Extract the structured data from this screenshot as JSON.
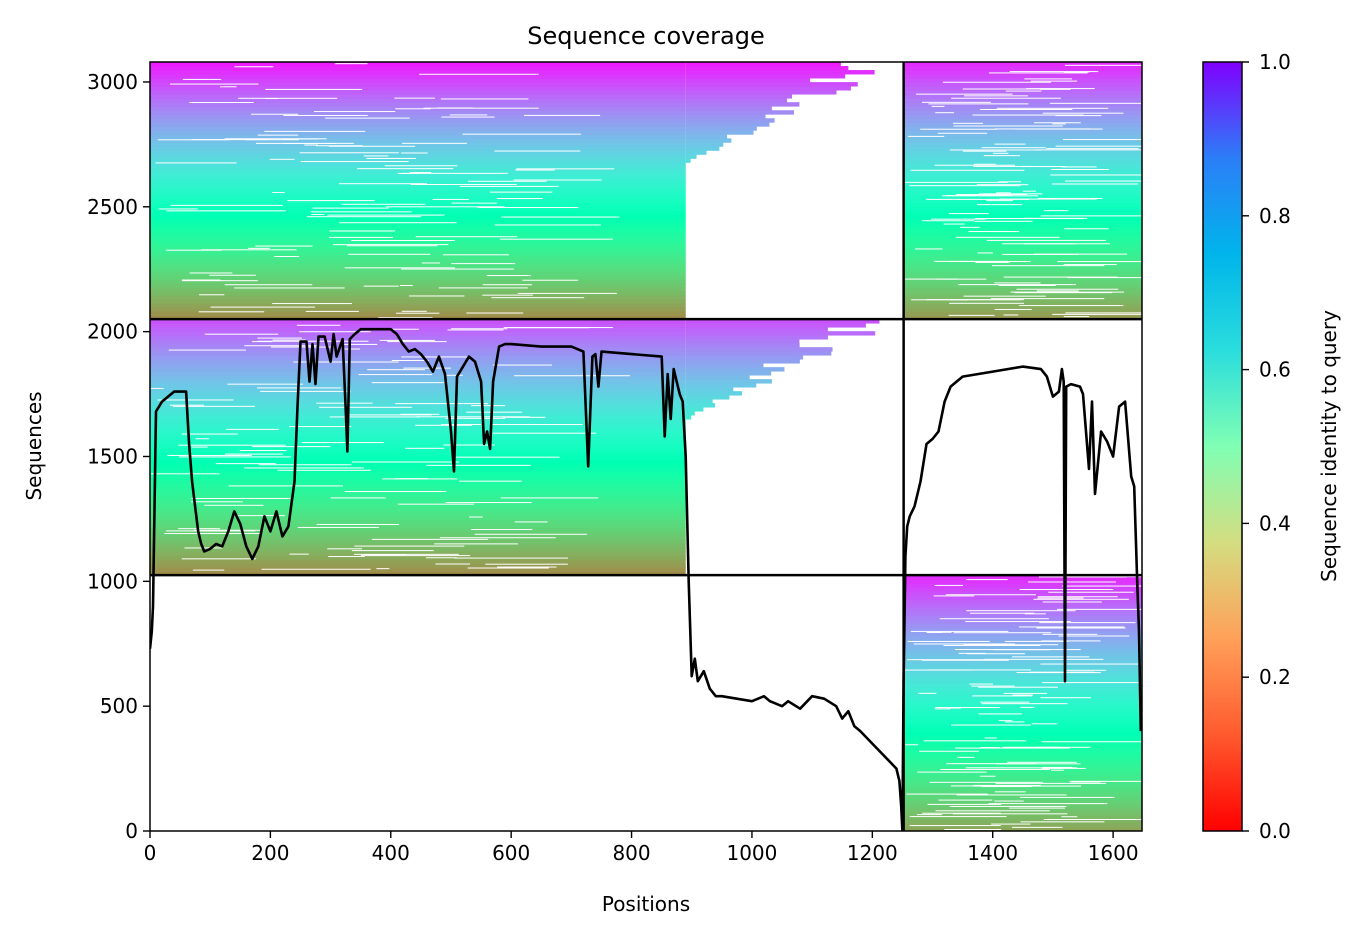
{
  "chart_data": {
    "type": "heatmap",
    "title": "Sequence coverage",
    "xlabel": "Positions",
    "ylabel": "Sequences",
    "colorbar_label": "Sequence identity to query",
    "xlim": [
      0,
      1648
    ],
    "ylim": [
      0,
      3080
    ],
    "x_ticks": [
      0,
      200,
      400,
      600,
      800,
      1000,
      1200,
      1400,
      1600
    ],
    "y_ticks": [
      0,
      500,
      1000,
      1500,
      2000,
      2500,
      3000
    ],
    "colorbar_ticks": [
      0.0,
      0.2,
      0.4,
      0.6,
      0.8,
      1.0
    ],
    "colorbar_range": [
      0,
      1
    ],
    "colormap": "rainbow_r",
    "grid": false,
    "divider_x": [
      1252
    ],
    "divider_y": [
      1025,
      2050
    ],
    "blocks": [
      {
        "x": [
          0,
          1252
        ],
        "y": [
          2050,
          3080
        ],
        "coverage_end": 890,
        "sparse_ext_end": 1252,
        "id_bottom": 0.18,
        "id_top": 0.97
      },
      {
        "x": [
          1252,
          1648
        ],
        "y": [
          2050,
          3080
        ],
        "coverage_end": 1648,
        "id_bottom": 0.2,
        "id_top": 0.95
      },
      {
        "x": [
          0,
          1252
        ],
        "y": [
          1025,
          2050
        ],
        "coverage_end": 890,
        "sparse_ext_end": 1252,
        "id_bottom": 0.18,
        "id_top": 0.9
      },
      {
        "x": [
          1252,
          1648
        ],
        "y": [
          0,
          1025
        ],
        "coverage_end": 1648,
        "id_bottom": 0.22,
        "id_top": 0.95
      }
    ],
    "coverage_line": {
      "name": "",
      "x": [
        0,
        3,
        5,
        10,
        20,
        40,
        60,
        65,
        70,
        75,
        80,
        85,
        90,
        100,
        110,
        120,
        130,
        140,
        150,
        160,
        170,
        180,
        190,
        200,
        210,
        220,
        230,
        240,
        245,
        250,
        260,
        265,
        270,
        275,
        280,
        290,
        300,
        305,
        310,
        320,
        325,
        328,
        332,
        340,
        350,
        400,
        410,
        420,
        430,
        440,
        450,
        460,
        470,
        480,
        490,
        500,
        505,
        510,
        520,
        530,
        540,
        550,
        555,
        560,
        565,
        570,
        580,
        590,
        600,
        650,
        700,
        720,
        728,
        735,
        740,
        745,
        750,
        800,
        850,
        855,
        860,
        865,
        870,
        880,
        885,
        890,
        895,
        900,
        905,
        910,
        920,
        930,
        940,
        950,
        1000,
        1010,
        1020,
        1030,
        1050,
        1060,
        1080,
        1100,
        1120,
        1140,
        1150,
        1160,
        1170,
        1180,
        1200,
        1220,
        1240,
        1245,
        1248,
        1250,
        1252,
        1255,
        1258,
        1262,
        1270,
        1280,
        1290,
        1300,
        1310,
        1320,
        1330,
        1340,
        1350,
        1400,
        1450,
        1480,
        1490,
        1500,
        1510,
        1515,
        1518,
        1520,
        1522,
        1530,
        1545,
        1550,
        1555,
        1560,
        1565,
        1570,
        1580,
        1590,
        1600,
        1610,
        1620,
        1630,
        1635,
        1640,
        1643,
        1646
      ],
      "y": [
        730,
        800,
        900,
        1680,
        1720,
        1760,
        1760,
        1550,
        1400,
        1300,
        1200,
        1150,
        1120,
        1130,
        1150,
        1140,
        1200,
        1280,
        1230,
        1140,
        1090,
        1140,
        1260,
        1200,
        1280,
        1180,
        1220,
        1400,
        1700,
        1960,
        1960,
        1800,
        1950,
        1790,
        1980,
        1980,
        1880,
        1990,
        1900,
        1970,
        1700,
        1520,
        1970,
        1990,
        2010,
        2010,
        1990,
        1950,
        1920,
        1930,
        1910,
        1880,
        1840,
        1900,
        1830,
        1600,
        1440,
        1820,
        1860,
        1900,
        1880,
        1800,
        1550,
        1600,
        1530,
        1800,
        1940,
        1950,
        1950,
        1940,
        1940,
        1920,
        1460,
        1900,
        1910,
        1780,
        1920,
        1910,
        1900,
        1580,
        1830,
        1650,
        1850,
        1750,
        1720,
        1500,
        1000,
        620,
        690,
        600,
        640,
        570,
        540,
        540,
        520,
        530,
        540,
        520,
        500,
        520,
        490,
        540,
        530,
        500,
        450,
        480,
        420,
        400,
        350,
        300,
        250,
        200,
        100,
        0,
        600,
        1100,
        1220,
        1260,
        1300,
        1400,
        1550,
        1570,
        1600,
        1720,
        1780,
        1800,
        1820,
        1840,
        1860,
        1850,
        1820,
        1740,
        1760,
        1850,
        1800,
        600,
        1780,
        1790,
        1780,
        1750,
        1600,
        1450,
        1720,
        1350,
        1600,
        1560,
        1500,
        1700,
        1720,
        1420,
        1380,
        1000,
        800,
        400
      ]
    }
  }
}
